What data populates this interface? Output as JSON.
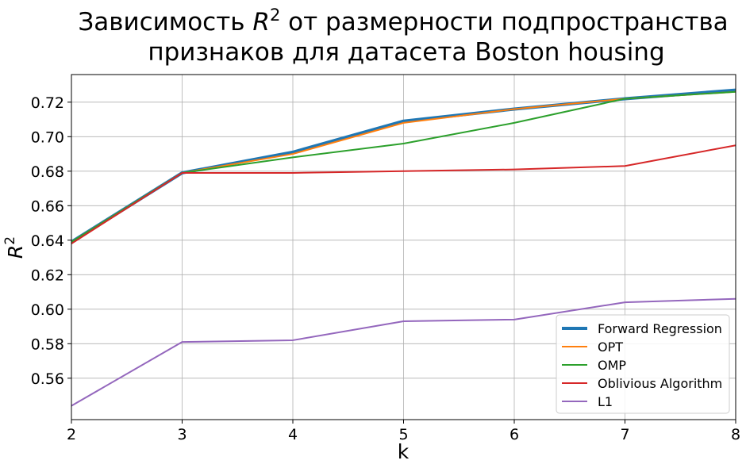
{
  "chart_data": {
    "type": "line",
    "title_line1_pre": "Зависимость ",
    "title_line1_var": "R",
    "title_line1_sup": "2",
    "title_line1_post": " от размерности подпространства",
    "title_line2": "признаков для датасета Boston housing",
    "xlabel": "k",
    "ylabel_var": "R",
    "ylabel_sup": "2",
    "xlim": [
      2,
      8
    ],
    "ylim": [
      0.536,
      0.736
    ],
    "xticks": [
      "2",
      "3",
      "4",
      "5",
      "6",
      "7",
      "8"
    ],
    "yticks": [
      "0.56",
      "0.58",
      "0.60",
      "0.62",
      "0.64",
      "0.66",
      "0.68",
      "0.70",
      "0.72"
    ],
    "grid": true,
    "legend_position": "lower-right",
    "x": [
      2,
      3,
      4,
      5,
      6,
      7,
      8
    ],
    "series": [
      {
        "name": "Forward Regression",
        "color": "#1f77b4",
        "width": "thick",
        "values": [
          0.639,
          0.679,
          0.691,
          0.709,
          0.716,
          0.722,
          0.727
        ]
      },
      {
        "name": "OPT",
        "color": "#ff7f0e",
        "width": "normal",
        "values": [
          0.639,
          0.679,
          0.69,
          0.708,
          0.716,
          0.722,
          0.726
        ]
      },
      {
        "name": "OMP",
        "color": "#2ca02c",
        "width": "normal",
        "values": [
          0.639,
          0.679,
          0.688,
          0.696,
          0.708,
          0.722,
          0.726
        ]
      },
      {
        "name": "Oblivious Algorithm",
        "color": "#d62728",
        "width": "normal",
        "values": [
          0.638,
          0.679,
          0.679,
          0.68,
          0.681,
          0.683,
          0.695
        ]
      },
      {
        "name": "L1",
        "color": "#9467bd",
        "width": "normal",
        "values": [
          0.544,
          0.581,
          0.582,
          0.593,
          0.594,
          0.604,
          0.606
        ]
      }
    ]
  }
}
